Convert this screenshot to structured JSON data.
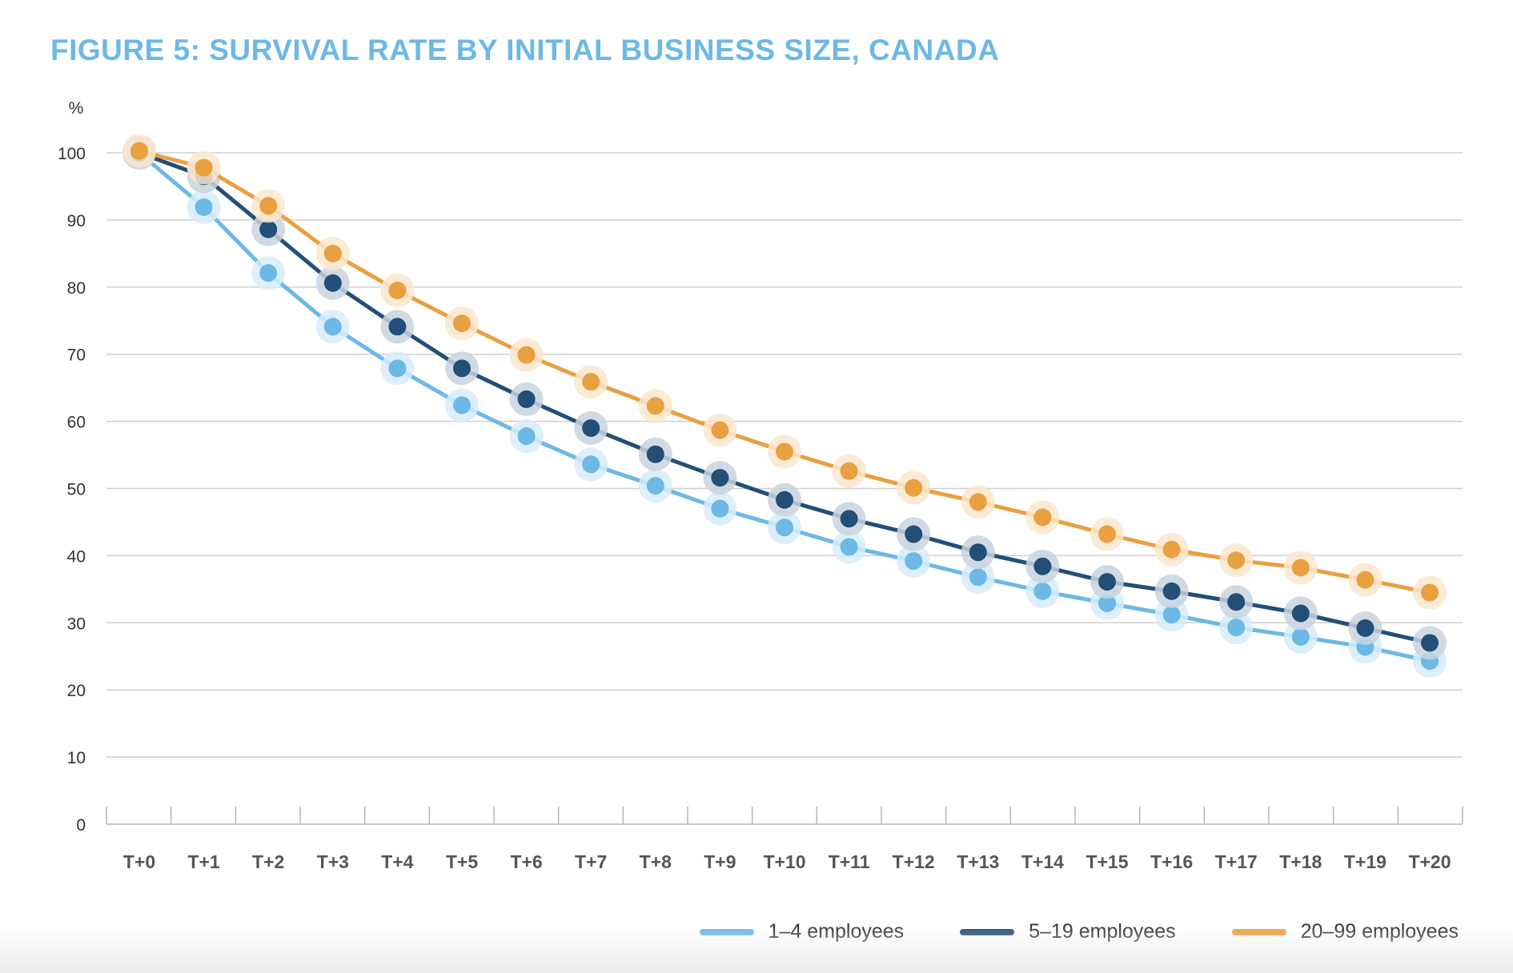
{
  "chart_data": {
    "type": "line",
    "title": "FIGURE 5: SURVIVAL RATE BY INITIAL BUSINESS SIZE, CANADA",
    "ylabel": "%",
    "xlabel": "",
    "ylim": [
      0,
      100
    ],
    "yticks": [
      0,
      10,
      20,
      30,
      40,
      50,
      60,
      70,
      80,
      90,
      100
    ],
    "grid": true,
    "legend_position": "bottom-right",
    "categories": [
      "T+0",
      "T+1",
      "T+2",
      "T+3",
      "T+4",
      "T+5",
      "T+6",
      "T+7",
      "T+8",
      "T+9",
      "T+10",
      "T+11",
      "T+12",
      "T+13",
      "T+14",
      "T+15",
      "T+16",
      "T+17",
      "T+18",
      "T+19",
      "T+20"
    ],
    "series": [
      {
        "name": "1–4 employees",
        "color": "#6cb8e6",
        "halo": "#d6ecf9",
        "values": [
          100,
          91.9,
          82.1,
          74.1,
          67.9,
          62.4,
          57.8,
          53.6,
          50.4,
          47.0,
          44.2,
          41.3,
          39.2,
          36.8,
          34.7,
          32.9,
          31.2,
          29.3,
          27.9,
          26.4,
          24.3
        ]
      },
      {
        "name": "5–19 employees",
        "color": "#234e77",
        "halo": "#c9d4de",
        "values": [
          100,
          96.5,
          88.6,
          80.6,
          74.1,
          67.9,
          63.3,
          59.0,
          55.1,
          51.6,
          48.3,
          45.5,
          43.2,
          40.5,
          38.4,
          36.1,
          34.7,
          33.1,
          31.4,
          29.2,
          27.0
        ]
      },
      {
        "name": "20–99 employees",
        "color": "#e9a040",
        "halo": "#fae6cc",
        "values": [
          100.3,
          97.8,
          92.1,
          85.0,
          79.5,
          74.6,
          69.9,
          65.9,
          62.3,
          58.7,
          55.5,
          52.6,
          50.1,
          48.0,
          45.7,
          43.2,
          40.9,
          39.3,
          38.2,
          36.4,
          34.5
        ]
      }
    ]
  }
}
